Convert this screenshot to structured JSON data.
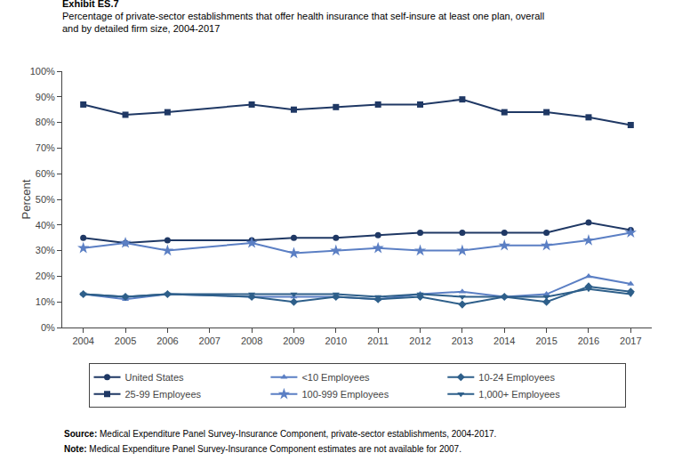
{
  "chart_data": {
    "type": "line",
    "title": "Exhibit ES.7",
    "subtitle": [
      "Percentage of private-sector establishments that offer health insurance that self-insure at least one plan, overall",
      "and by detailed firm size, 2004-2017"
    ],
    "y_label": "Percent",
    "annotations": [
      "Source: Medical Expenditure Panel Survey-Insurance Component, private-sector establishments, 2004-2017.",
      "Note: Medical Expenditure Panel Survey-Insurance Component estimates are not available for 2007."
    ],
    "x": [
      2004,
      2005,
      2006,
      2007,
      2008,
      2009,
      2010,
      2011,
      2012,
      2013,
      2014,
      2015,
      2016,
      2017
    ],
    "series": [
      {
        "name": "United States",
        "color": "#1f3864",
        "marker": "circle",
        "values": [
          35,
          33,
          34,
          null,
          34,
          35,
          35,
          36,
          37,
          37,
          37,
          37,
          41,
          38
        ]
      },
      {
        "name": "<10 Employees",
        "color": "#5b7fc4",
        "marker": "triangle-up",
        "values": [
          13,
          11,
          13,
          null,
          12,
          12,
          12,
          11,
          13,
          14,
          12,
          13,
          20,
          17
        ]
      },
      {
        "name": "10-24 Employees",
        "color": "#2e5f8a",
        "marker": "diamond",
        "values": [
          13,
          12,
          13,
          null,
          12,
          10,
          12,
          11,
          12,
          9,
          12,
          10,
          16,
          14
        ]
      },
      {
        "name": "25-99 Employees",
        "color": "#1f3864",
        "marker": "square",
        "values": [
          87,
          83,
          84,
          null,
          87,
          85,
          86,
          87,
          87,
          89,
          84,
          84,
          82,
          79
        ]
      },
      {
        "name": "100-999 Employees",
        "color": "#5b7fc4",
        "marker": "star",
        "values": [
          31,
          33,
          30,
          null,
          33,
          29,
          30,
          31,
          30,
          30,
          32,
          32,
          34,
          37
        ]
      },
      {
        "name": "1,000+ Employees",
        "color": "#2e5f8a",
        "marker": "triangle-down",
        "values": [
          13,
          12,
          13,
          null,
          13,
          13,
          13,
          12,
          13,
          12,
          12,
          12,
          15,
          13
        ]
      }
    ],
    "xlim": [
      2003.5,
      2017.5
    ],
    "xticks": [
      2004,
      2005,
      2006,
      2007,
      2008,
      2009,
      2010,
      2011,
      2012,
      2013,
      2014,
      2015,
      2016,
      2017
    ],
    "ylim": [
      0,
      100
    ],
    "yticks": [
      {
        "value": 0,
        "label": "0%"
      },
      {
        "value": 10,
        "label": "10%"
      },
      {
        "value": 20,
        "label": "20%"
      },
      {
        "value": 30,
        "label": "30%"
      },
      {
        "value": 40,
        "label": "40%"
      },
      {
        "value": 50,
        "label": "50%"
      },
      {
        "value": 60,
        "label": "60%"
      },
      {
        "value": 70,
        "label": "70%"
      },
      {
        "value": 80,
        "label": "80%"
      },
      {
        "value": 90,
        "label": "90%"
      },
      {
        "value": 100,
        "label": "100%"
      }
    ],
    "grid": false,
    "legend": "bottom"
  }
}
